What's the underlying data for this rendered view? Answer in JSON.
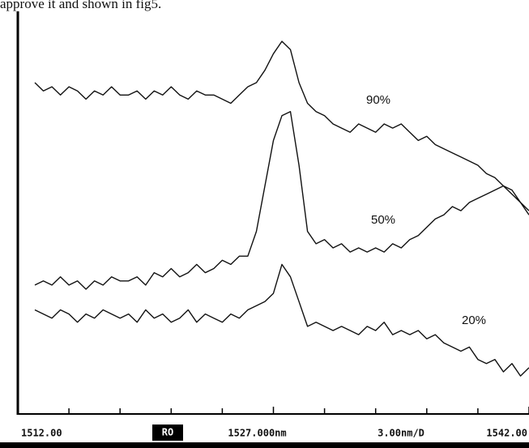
{
  "caption_fragment": "approve it and shown in fig5.",
  "chart_data": {
    "type": "line",
    "x": [
      1513,
      1513.5,
      1514,
      1514.5,
      1515,
      1515.5,
      1516,
      1516.5,
      1517,
      1517.5,
      1518,
      1518.5,
      1519,
      1519.5,
      1520,
      1520.5,
      1521,
      1521.5,
      1522,
      1522.5,
      1523,
      1523.5,
      1524,
      1524.5,
      1525,
      1525.5,
      1526,
      1526.5,
      1527,
      1527.5,
      1528,
      1528.5,
      1529,
      1529.5,
      1530,
      1530.5,
      1531,
      1531.5,
      1532,
      1532.5,
      1533,
      1533.5,
      1534,
      1534.5,
      1535,
      1535.5,
      1536,
      1536.5,
      1537,
      1537.5,
      1538,
      1538.5,
      1539,
      1539.5,
      1540,
      1540.5,
      1541,
      1541.5,
      1542
    ],
    "series": [
      {
        "name": "90%",
        "color": "#111111",
        "values": [
          80,
          78,
          79,
          77,
          79,
          78,
          76,
          78,
          77,
          79,
          77,
          77,
          78,
          76,
          78,
          77,
          79,
          77,
          76,
          78,
          77,
          77,
          76,
          75,
          77,
          79,
          80,
          83,
          87,
          90,
          88,
          80,
          75,
          73,
          72,
          70,
          69,
          68,
          70,
          69,
          68,
          70,
          69,
          70,
          68,
          66,
          67,
          65,
          64,
          63,
          62,
          61,
          60,
          58,
          57,
          55,
          54,
          51,
          49
        ]
      },
      {
        "name": "50%",
        "color": "#111111",
        "values": [
          31,
          32,
          31,
          33,
          31,
          32,
          30,
          32,
          31,
          33,
          32,
          32,
          33,
          31,
          34,
          33,
          35,
          33,
          34,
          36,
          34,
          35,
          37,
          36,
          38,
          38,
          44,
          55,
          66,
          72,
          73,
          60,
          44,
          41,
          42,
          40,
          41,
          39,
          40,
          39,
          40,
          39,
          41,
          40,
          42,
          43,
          45,
          47,
          48,
          50,
          49,
          51,
          52,
          53,
          54,
          55,
          53,
          51,
          48
        ]
      },
      {
        "name": "20%",
        "color": "#111111",
        "values": [
          25,
          24,
          23,
          25,
          24,
          22,
          24,
          23,
          25,
          24,
          23,
          24,
          22,
          25,
          23,
          24,
          22,
          23,
          25,
          22,
          24,
          23,
          22,
          24,
          23,
          25,
          26,
          27,
          29,
          36,
          33,
          27,
          21,
          22,
          21,
          20,
          21,
          20,
          19,
          21,
          20,
          22,
          19,
          20,
          19,
          20,
          18,
          19,
          17,
          16,
          15,
          16,
          13,
          12,
          13,
          10,
          12,
          9,
          11
        ]
      }
    ],
    "xlim": [
      1512,
      1542
    ],
    "ylim": [
      0,
      100
    ],
    "xticks": [
      {
        "value": 1512,
        "label": "1512.00"
      },
      {
        "value": 1527,
        "label": "1527.000nm"
      },
      {
        "value": 1542,
        "label": "1542.00"
      }
    ],
    "division_ticks": [
      1515,
      1518,
      1521,
      1524,
      1530,
      1533,
      1536,
      1539
    ],
    "scale_label": "3.00nm/D",
    "marker_label": "RO"
  }
}
